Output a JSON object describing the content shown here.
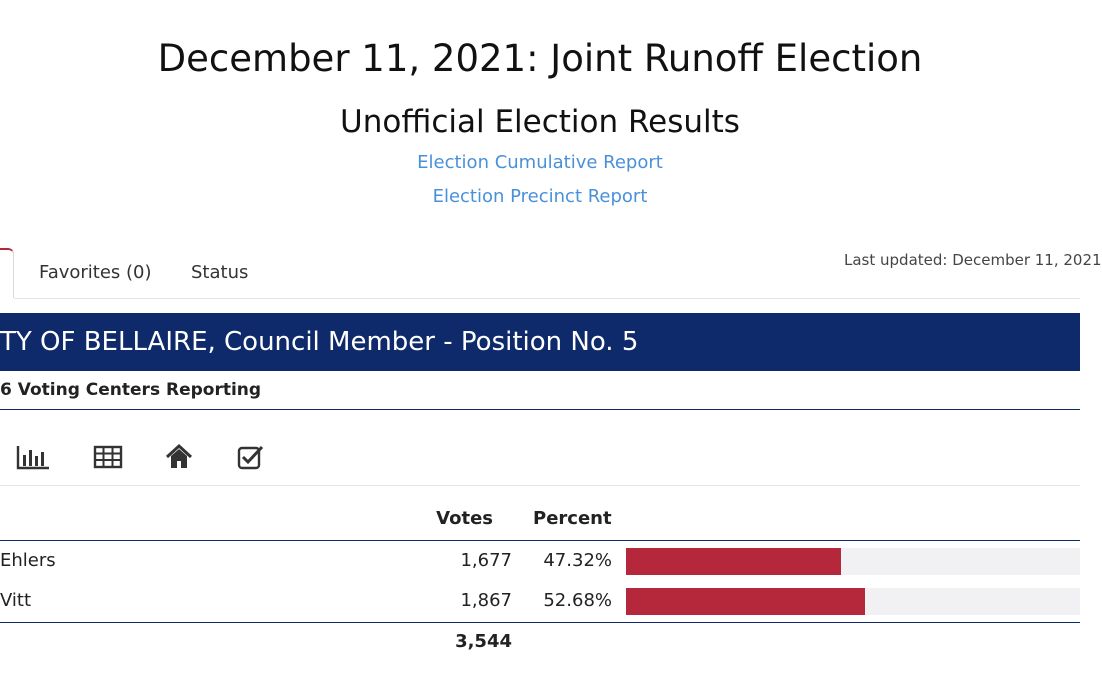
{
  "header": {
    "title": "December 11, 2021: Joint Runoff Election",
    "subtitle": "Unofficial Election Results",
    "links": [
      "Election Cumulative Report",
      "Election Precinct Report"
    ]
  },
  "tabs": {
    "favorites_label": "Favorites (0)",
    "status_label": "Status",
    "last_updated": "Last updated: December 11, 2021"
  },
  "race": {
    "title": "TY OF BELLAIRE, Council Member - Position No. 5",
    "reporting": "6 Voting Centers Reporting"
  },
  "toolbar": {
    "icons": [
      "bar-chart-icon",
      "table-icon",
      "home-icon",
      "checkbox-icon"
    ]
  },
  "results": {
    "headers": {
      "votes": "Votes",
      "percent": "Percent"
    },
    "rows": [
      {
        "name": " Ehlers",
        "votes": "1,677",
        "percent": "47.32%",
        "share": 0.4732
      },
      {
        "name": "Vitt",
        "votes": "1,867",
        "percent": "52.68%",
        "share": 0.5268
      }
    ],
    "total": "3,544"
  },
  "colors": {
    "race_banner": "#0f2a6b",
    "bar": "#b5273a",
    "link": "#4a90d9"
  }
}
